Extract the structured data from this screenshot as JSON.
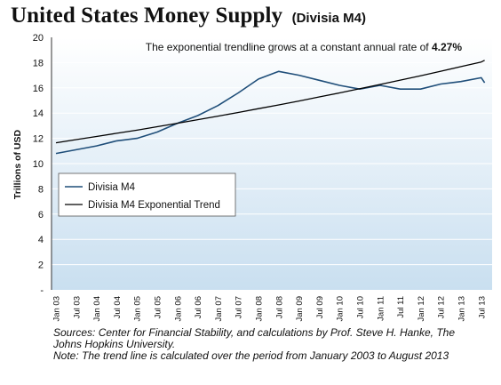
{
  "header": {
    "title": "United States Money Supply",
    "subtitle": "(Divisia M4)"
  },
  "chart_data": {
    "type": "line",
    "annotation": {
      "prefix": "The exponential trendline grows at a constant annual rate of ",
      "value": "4.27%"
    },
    "ylabel": "Trillions of USD",
    "xlabel": "",
    "ylim": [
      0,
      20
    ],
    "yticks": [
      "2",
      "4",
      "6",
      "8",
      "10",
      "12",
      "14",
      "16",
      "18",
      "20"
    ],
    "x_ticks": [
      "Jan 03",
      "Jul 03",
      "Jan 04",
      "Jul 04",
      "Jan 05",
      "Jul 05",
      "Jan 06",
      "Jul 06",
      "Jan 07",
      "Jul 07",
      "Jan 08",
      "Jul 08",
      "Jan 09",
      "Jul 09",
      "Jan 10",
      "Jul 10",
      "Jan 11",
      "Jul 11",
      "Jan 12",
      "Jul 12",
      "Jan 13",
      "Jul 13"
    ],
    "legend_position": "left-middle",
    "grid": true,
    "series": [
      {
        "name": "Divisia M4",
        "color": "#1f4e79",
        "x": [
          "Jan 03",
          "Jul 03",
          "Jan 04",
          "Jul 04",
          "Jan 05",
          "Jul 05",
          "Jan 06",
          "Jul 06",
          "Jan 07",
          "Jul 07",
          "Jan 08",
          "Jul 08",
          "Jan 09",
          "Jul 09",
          "Jan 10",
          "Jul 10",
          "Jan 11",
          "Jul 11",
          "Jan 12",
          "Jul 12",
          "Jan 13",
          "Jul 13",
          "Aug 13"
        ],
        "values": [
          10.8,
          11.1,
          11.4,
          11.8,
          12.0,
          12.5,
          13.2,
          13.8,
          14.6,
          15.6,
          16.7,
          17.3,
          17.0,
          16.6,
          16.2,
          15.9,
          16.2,
          15.9,
          15.9,
          16.3,
          16.5,
          16.8,
          16.4
        ]
      },
      {
        "name": "Divisia M4 Exponential Trend",
        "color": "#000000",
        "x": [
          "Jan 03",
          "Jul 03",
          "Jan 04",
          "Jul 04",
          "Jan 05",
          "Jul 05",
          "Jan 06",
          "Jul 06",
          "Jan 07",
          "Jul 07",
          "Jan 08",
          "Jul 08",
          "Jan 09",
          "Jul 09",
          "Jan 10",
          "Jul 10",
          "Jan 11",
          "Jul 11",
          "Jan 12",
          "Jul 12",
          "Jan 13",
          "Jul 13",
          "Aug 13"
        ],
        "values": [
          11.65,
          11.9,
          12.15,
          12.4,
          12.65,
          12.92,
          13.2,
          13.48,
          13.76,
          14.05,
          14.35,
          14.65,
          14.96,
          15.28,
          15.6,
          15.93,
          16.27,
          16.61,
          16.96,
          17.32,
          17.68,
          18.05,
          18.18
        ]
      }
    ]
  },
  "sources": {
    "line1": "Sources: Center for Financial Stability, and calculations by Prof. Steve H. Hanke, The",
    "line2": "Johns Hopkins University.",
    "line3": "Note: The trend line is calculated over the period from January 2003 to August 2013"
  },
  "colors": {
    "plot_top": "#ffffff",
    "plot_bottom": "#c9dff0",
    "gridline": "#ffffff"
  }
}
